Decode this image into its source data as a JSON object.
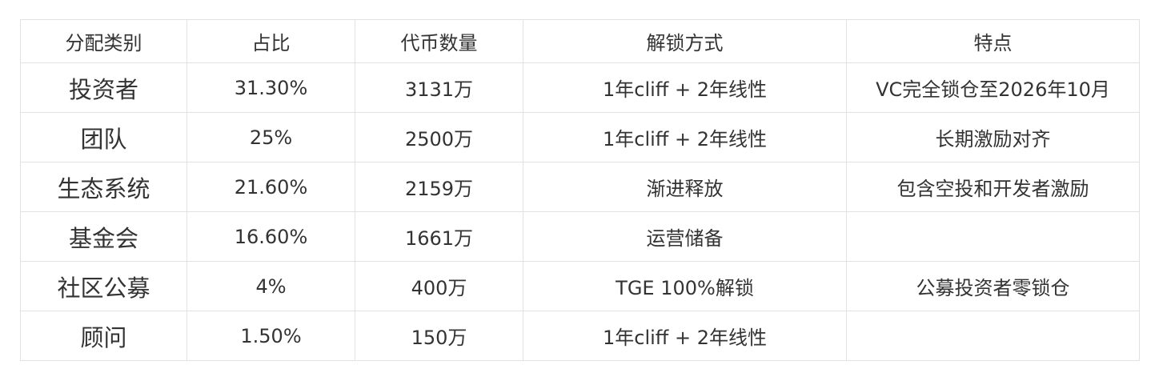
{
  "headers": [
    "分配类别",
    "占比",
    "代币数量",
    "解锁方式",
    "特点"
  ],
  "rows": [
    [
      "投资者",
      "31.30%",
      "3131万",
      "1年cliff + 2年线性",
      "VC完全锁仓至2026年10月"
    ],
    [
      "团队",
      "25%",
      "2500万",
      "1年cliff + 2年线性",
      "长期激励对齐"
    ],
    [
      "生态系统",
      "21.60%",
      "2159万",
      "渐进释放",
      "包含空投和开发者激励"
    ],
    [
      "基金会",
      "16.60%",
      "1661万",
      "运营储备",
      ""
    ],
    [
      "社区公募",
      "4%",
      "400万",
      "TGE 100%解锁",
      "公募投资者零锁仓"
    ],
    [
      "顾问",
      "1.50%",
      "150万",
      "1年cliff + 2年线性",
      ""
    ]
  ]
}
